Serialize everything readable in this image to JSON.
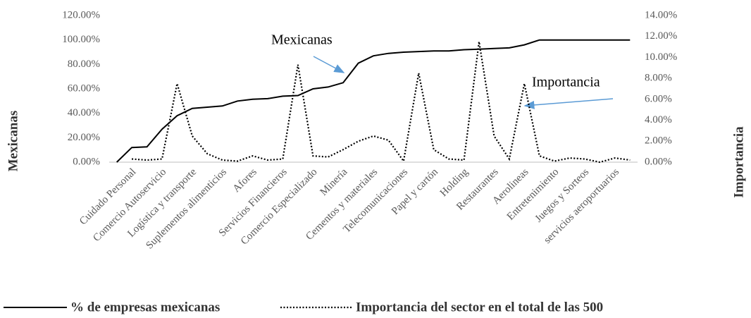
{
  "chart_data": {
    "type": "line",
    "categories": [
      null,
      "Cuidado Personal",
      null,
      "Comercio Autoservicio",
      null,
      "Logística y  transporte",
      null,
      "Suplementos alimenticios",
      null,
      "Afores",
      null,
      "Servicios Financieros",
      null,
      "Comercio Especializado",
      null,
      "Minería",
      null,
      "Cementos y materiales",
      null,
      "Telecomunicaciones",
      null,
      "Papel y cartón",
      null,
      "Holding",
      null,
      "Restaurantes",
      null,
      "Aerolineas",
      null,
      "Entretenimiento",
      null,
      "Juegos y Sorteos",
      null,
      "servicios aeroportuarios",
      null
    ],
    "series": [
      {
        "name": "% de empresas mexicanas",
        "color": "#000000",
        "dash": "solid",
        "values": [
          0,
          12,
          12.5,
          27,
          38,
          44,
          45,
          46,
          50,
          51.5,
          52,
          54,
          54.5,
          60,
          61.5,
          65,
          81,
          87,
          89,
          90,
          90.5,
          91,
          91,
          92,
          92.5,
          93,
          93.5,
          96,
          100,
          100,
          100,
          100,
          100,
          100,
          100
        ]
      },
      {
        "name": "Importancia del sector en el total de las 500",
        "color": "#000000",
        "dash": "dotted",
        "axis": "y2",
        "values": [
          null,
          0.3,
          0.2,
          0.3,
          7.5,
          2.5,
          0.8,
          0.2,
          0.1,
          0.6,
          0.2,
          0.3,
          9.3,
          0.6,
          0.5,
          1.2,
          2.0,
          2.5,
          2.1,
          0.1,
          8.5,
          1.2,
          0.3,
          0.2,
          11.5,
          2.5,
          0.3,
          7.5,
          0.6,
          0.1,
          0.4,
          0.3,
          0.0,
          0.4,
          0.2
        ]
      }
    ],
    "ylabel": "Mexicanas",
    "y2label": "Importancia",
    "ylim": [
      0,
      120
    ],
    "yticks": [
      {
        "value": 0,
        "label": "0.00%"
      },
      {
        "value": 20,
        "label": "20.00%"
      },
      {
        "value": 40,
        "label": "40.00%"
      },
      {
        "value": 60,
        "label": "60.00%"
      },
      {
        "value": 80,
        "label": "80.00%"
      },
      {
        "value": 100,
        "label": "100.00%"
      },
      {
        "value": 120,
        "label": "120.00%"
      }
    ],
    "y2lim": [
      0,
      14
    ],
    "y2ticks": [
      {
        "value": 0,
        "label": "0.00%"
      },
      {
        "value": 2,
        "label": "2.00%"
      },
      {
        "value": 4,
        "label": "4.00%"
      },
      {
        "value": 6,
        "label": "6.00%"
      },
      {
        "value": 8,
        "label": "8.00%"
      },
      {
        "value": 10,
        "label": "10.00%"
      },
      {
        "value": 12,
        "label": "12.00%"
      },
      {
        "value": 14,
        "label": "14.00%"
      }
    ],
    "annotations": [
      "Mexicanas",
      "Importancia"
    ],
    "legend": "bottom"
  }
}
